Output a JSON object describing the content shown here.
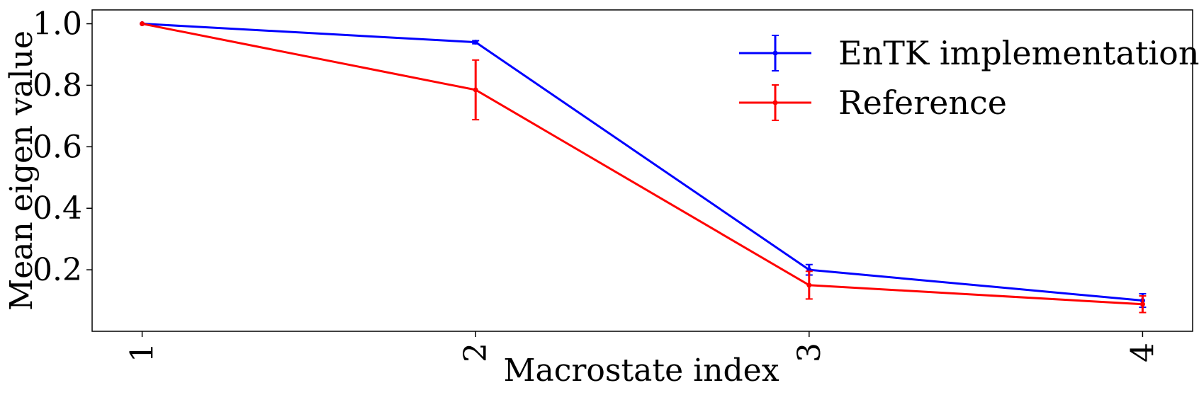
{
  "chart_data": {
    "type": "line",
    "title": "",
    "xlabel": "Macrostate index",
    "ylabel": "Mean eigen value",
    "x": [
      1,
      2,
      3,
      4
    ],
    "xticks": [
      "1",
      "2",
      "3",
      "4"
    ],
    "yticks": [
      "0.2",
      "0.4",
      "0.6",
      "0.8",
      "1.0"
    ],
    "xlim": [
      0.85,
      4.15
    ],
    "ylim": [
      0.0,
      1.045
    ],
    "grid": false,
    "legend_position": "top-right",
    "series": [
      {
        "name": "EnTK implementation",
        "color": "#0000ff",
        "values": [
          1.0,
          0.94,
          0.2,
          0.1
        ],
        "errors": [
          0.0,
          0.005,
          0.017,
          0.022
        ]
      },
      {
        "name": "Reference",
        "color": "#ff0000",
        "values": [
          1.0,
          0.785,
          0.15,
          0.088
        ],
        "errors": [
          0.0,
          0.097,
          0.045,
          0.027
        ]
      }
    ]
  }
}
